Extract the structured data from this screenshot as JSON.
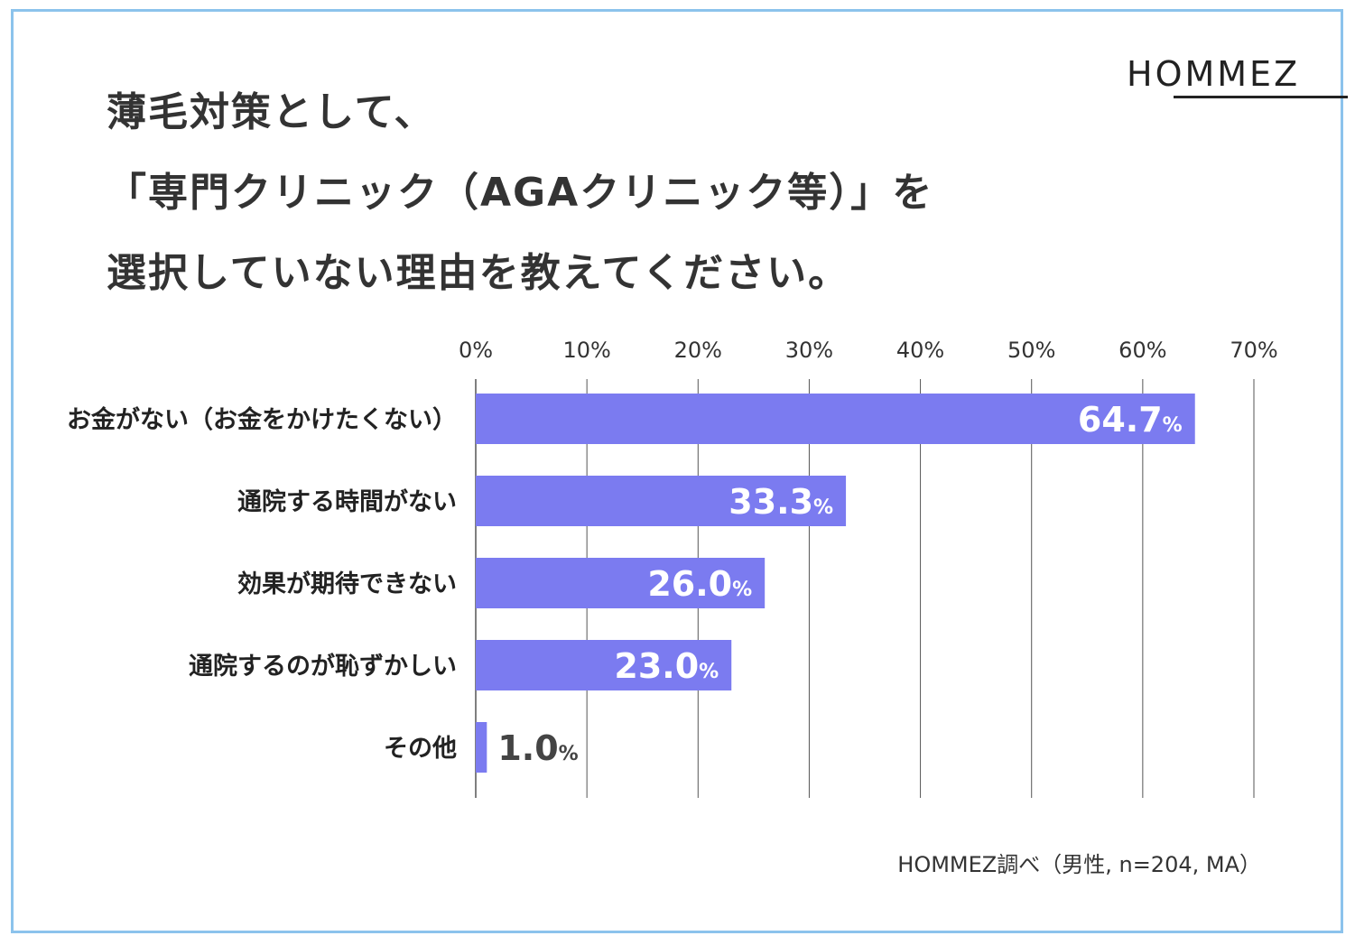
{
  "title_lines": [
    "薄毛対策として、",
    "「専門クリニック（AGAクリニック等）」を",
    "選択していない理由を教えてください。"
  ],
  "logo": "HOMMEZ",
  "source": "HOMMEZ調べ（男性, n=204, MA）",
  "colors": {
    "bar": "#7b7bf0",
    "grid": "#555555",
    "frame": "#8cc3ec",
    "text": "#333333"
  },
  "chart_data": {
    "type": "bar",
    "orientation": "horizontal",
    "categories": [
      "お金がない（お金をかけたくない）",
      "通院する時間がない",
      "効果が期待できない",
      "通院するのが恥ずかしい",
      "その他"
    ],
    "values": [
      64.7,
      33.3,
      26.0,
      23.0,
      1.0
    ],
    "value_labels": [
      "64.7",
      "33.3",
      "26.0",
      "23.0",
      "1.0"
    ],
    "value_suffix": "%",
    "xlim": [
      0,
      70
    ],
    "xticks": [
      "0%",
      "10%",
      "20%",
      "30%",
      "40%",
      "50%",
      "60%",
      "70%"
    ],
    "grid": true
  }
}
